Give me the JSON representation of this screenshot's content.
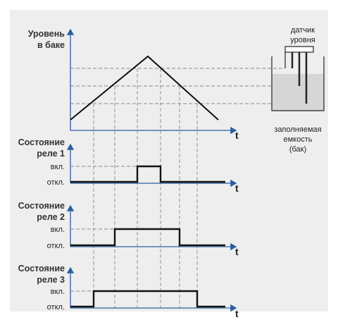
{
  "level_chart": {
    "label": [
      "Уровень",
      "в баке"
    ],
    "axis_label": "t"
  },
  "sensor": {
    "label": [
      "датчик",
      "уровня"
    ]
  },
  "tank": {
    "label": [
      "заполняемая",
      "емкость",
      "(бак)"
    ]
  },
  "relays": [
    {
      "label": [
        "Состояние",
        "реле 1"
      ],
      "on": "вкл.",
      "off": "откл.",
      "axis_label": "t"
    },
    {
      "label": [
        "Состояние",
        "реле 2"
      ],
      "on": "вкл.",
      "off": "откл.",
      "axis_label": "t"
    },
    {
      "label": [
        "Состояние",
        "реле 3"
      ],
      "on": "вкл.",
      "off": "откл.",
      "axis_label": "t"
    }
  ]
}
